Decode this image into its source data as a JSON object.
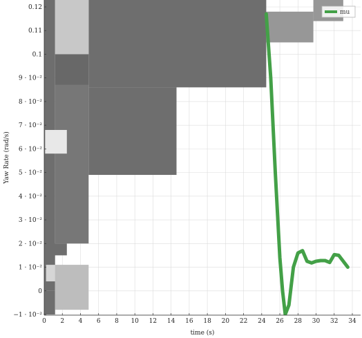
{
  "chart_data": {
    "type": "line",
    "xlabel": "time (s)",
    "ylabel": "Yaw Rate (rad/s)",
    "xlim": [
      0,
      35
    ],
    "ylim": [
      -0.01,
      0.125
    ],
    "grid": true,
    "legend_position": "top-right",
    "x_ticks": [
      0,
      2,
      4,
      6,
      8,
      10,
      12,
      14,
      16,
      18,
      20,
      22,
      24,
      26,
      28,
      30,
      32,
      34
    ],
    "y_ticks": [
      {
        "value": -0.01,
        "label": "−1 · 10⁻²"
      },
      {
        "value": 0,
        "label": "0"
      },
      {
        "value": 0.01,
        "label": "1 · 10⁻²"
      },
      {
        "value": 0.02,
        "label": "2 · 10⁻²"
      },
      {
        "value": 0.03,
        "label": "3 · 10⁻²"
      },
      {
        "value": 0.04,
        "label": "4 · 10⁻²"
      },
      {
        "value": 0.05,
        "label": "5 · 10⁻²"
      },
      {
        "value": 0.06,
        "label": "6 · 10⁻²"
      },
      {
        "value": 0.07,
        "label": "7 · 10⁻²"
      },
      {
        "value": 0.08,
        "label": "8 · 10⁻²"
      },
      {
        "value": 0.09,
        "label": "9 · 10⁻²"
      },
      {
        "value": 0.1,
        "label": "0.1"
      },
      {
        "value": 0.11,
        "label": "0.11"
      },
      {
        "value": 0.12,
        "label": "0.12"
      }
    ],
    "series": [
      {
        "name": "mu",
        "color": "#43a047",
        "x": [
          24.5,
          25.0,
          25.5,
          26.0,
          26.3,
          26.6,
          27.0,
          27.5,
          28.0,
          28.5,
          29.0,
          29.5,
          30.0,
          30.5,
          31.0,
          31.5,
          32.0,
          32.5,
          33.0,
          33.5
        ],
        "y": [
          0.117,
          0.09,
          0.05,
          0.014,
          0.0,
          -0.01,
          -0.006,
          0.01,
          0.016,
          0.017,
          0.0125,
          0.0118,
          0.0125,
          0.0128,
          0.0128,
          0.012,
          0.0153,
          0.015,
          0.0125,
          0.01
        ]
      }
    ],
    "background_regions": [
      {
        "x": [
          4.9,
          24.5
        ],
        "y": [
          0.086,
          0.125
        ],
        "color": "#6e6e6e"
      },
      {
        "x": [
          4.9,
          14.6
        ],
        "y": [
          0.049,
          0.086
        ],
        "color": "#6e6e6e"
      },
      {
        "x": [
          24.5,
          29.7
        ],
        "y": [
          0.105,
          0.118
        ],
        "color": "#979797"
      },
      {
        "x": [
          29.7,
          33.0
        ],
        "y": [
          0.114,
          0.125
        ],
        "color": "#979797"
      },
      {
        "x": [
          0.0,
          1.2
        ],
        "y": [
          0.0,
          0.125
        ],
        "color": "#6e6e6e"
      },
      {
        "x": [
          0.0,
          1.2
        ],
        "y": [
          -0.01,
          0.0
        ],
        "color": "#6e6e6e"
      },
      {
        "x": [
          1.2,
          4.9
        ],
        "y": [
          0.1,
          0.125
        ],
        "color": "#c8c8c8"
      },
      {
        "x": [
          1.2,
          4.9
        ],
        "y": [
          0.087,
          0.1
        ],
        "color": "#686868"
      },
      {
        "x": [
          1.2,
          4.9
        ],
        "y": [
          0.02,
          0.087
        ],
        "color": "#777777"
      },
      {
        "x": [
          0.1,
          2.5
        ],
        "y": [
          0.058,
          0.068
        ],
        "color": "#e8e8e8"
      },
      {
        "x": [
          0.0,
          2.5
        ],
        "y": [
          0.015,
          0.02
        ],
        "color": "#6e6e6e"
      },
      {
        "x": [
          1.2,
          4.9
        ],
        "y": [
          -0.008,
          0.011
        ],
        "color": "#bdbdbd"
      },
      {
        "x": [
          0.2,
          1.2
        ],
        "y": [
          0.004,
          0.011
        ],
        "color": "#d6d6d6"
      }
    ]
  }
}
